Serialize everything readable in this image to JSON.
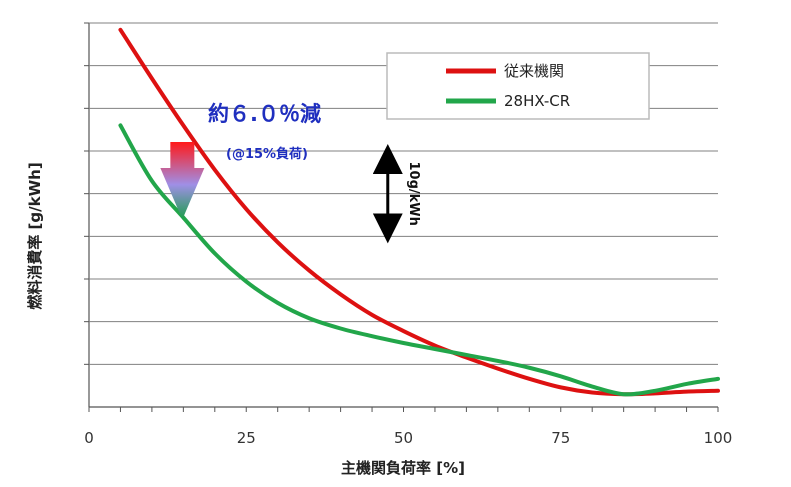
{
  "chart_data": {
    "type": "line",
    "xlabel": "主機関負荷率 [%]",
    "ylabel": "燃料消費率 [g/kWh]",
    "xlim": [
      0,
      100
    ],
    "xticks": [
      0,
      25,
      50,
      75,
      100
    ],
    "y_unit_note": "y axis has no numeric tick labels; one gridline step = 5 g/kWh (arrow spans 10 g/kWh)",
    "ylim": [
      0,
      45
    ],
    "ygrid_step": 5,
    "grid": "horizontal",
    "legend_position": "top-right",
    "series": [
      {
        "name": "従来機関",
        "color": "#dd1111",
        "x": [
          5,
          10,
          15,
          20,
          25,
          30,
          35,
          40,
          45,
          50,
          55,
          60,
          65,
          70,
          75,
          80,
          85,
          90,
          95,
          100
        ],
        "y": [
          44.2,
          38.5,
          33.0,
          27.8,
          23.2,
          19.3,
          16.0,
          13.2,
          10.8,
          8.9,
          7.2,
          5.8,
          4.5,
          3.3,
          2.3,
          1.7,
          1.5,
          1.6,
          1.8,
          1.9
        ]
      },
      {
        "name": "28HX-CR",
        "color": "#22a64a",
        "x": [
          5,
          10,
          15,
          20,
          25,
          30,
          35,
          40,
          45,
          50,
          55,
          60,
          65,
          70,
          75,
          80,
          85,
          90,
          95,
          100
        ],
        "y": [
          33.0,
          26.5,
          22.2,
          18.0,
          14.7,
          12.2,
          10.4,
          9.2,
          8.3,
          7.5,
          6.8,
          6.1,
          5.4,
          4.6,
          3.6,
          2.4,
          1.5,
          1.9,
          2.7,
          3.3
        ]
      }
    ],
    "annotations": {
      "reduction_text": "約６.０％減",
      "reduction_condition": "(@15%負荷)",
      "reduction_at_x": 15,
      "scale_arrow_text": "10g/kWh",
      "scale_arrow_at_x": 47.5,
      "scale_arrow_from_y": 20,
      "scale_arrow_to_y": 30,
      "arrow_colors": [
        "#ff1a1a",
        "#9f8fe6",
        "#1a9e4a"
      ]
    },
    "legend_border_color": "#bbbbbb",
    "grid_color": "#808080"
  }
}
